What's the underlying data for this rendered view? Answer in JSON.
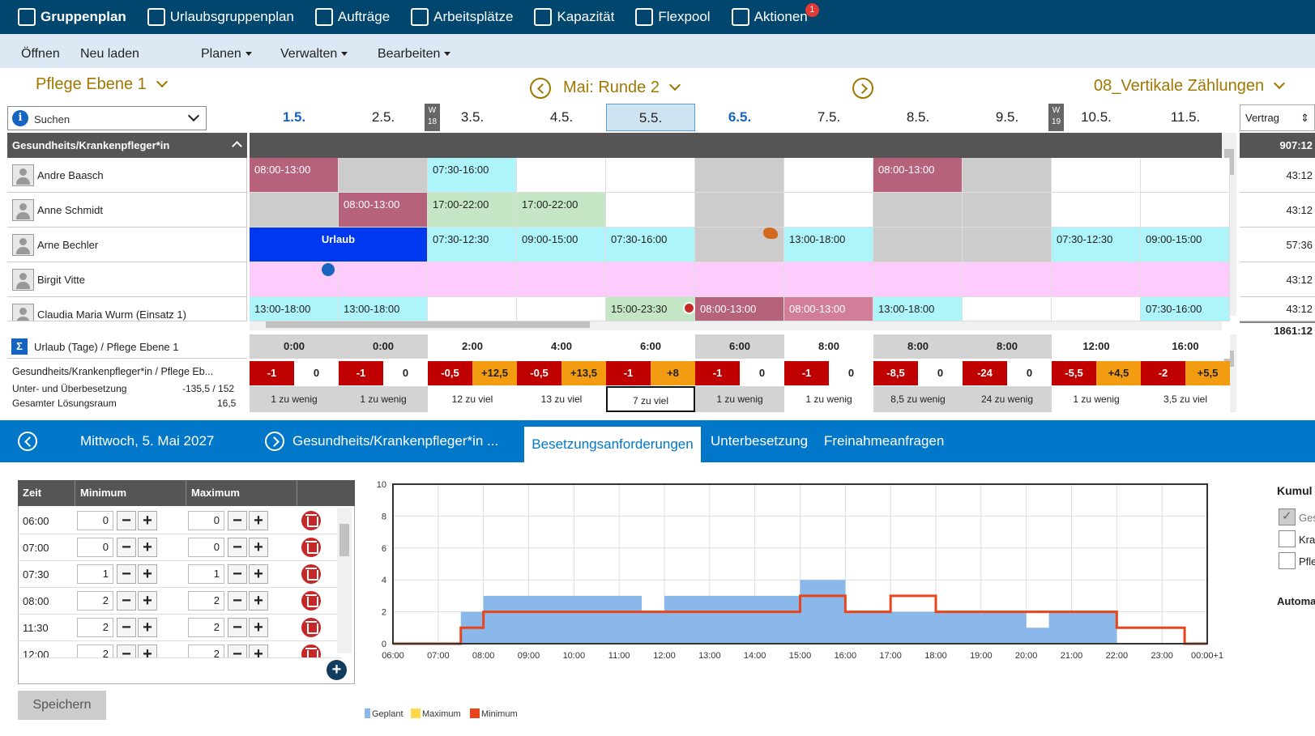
{
  "nav": [
    {
      "label": "Gruppenplan",
      "icon": "calendar-people-icon",
      "active": true
    },
    {
      "label": "Urlaubsgruppenplan",
      "icon": "calendar-check-icon"
    },
    {
      "label": "Aufträge",
      "icon": "rocket-icon"
    },
    {
      "label": "Arbeitsplätze",
      "icon": "clipboard-icon"
    },
    {
      "label": "Kapazität",
      "icon": "calendar-grid-icon"
    },
    {
      "label": "Flexpool",
      "icon": "person-gear-icon"
    },
    {
      "label": "Aktionen",
      "icon": "gauge-icon",
      "badge": "1"
    }
  ],
  "menu": {
    "open": "Öffnen",
    "reload": "Neu laden",
    "plan": "Planen",
    "manage": "Verwalten",
    "edit": "Bearbeiten"
  },
  "header": {
    "unit": "Pflege Ebene 1",
    "round": "Mai: Runde 2",
    "counting": "08_Vertikale Zählungen",
    "search_placeholder": "Suchen",
    "contract_label": "Vertrag"
  },
  "dates": [
    "1.5.",
    "2.5.",
    "3.5.",
    "4.5.",
    "5.5.",
    "6.5.",
    "7.5.",
    "8.5.",
    "9.5.",
    "10.5.",
    "11.5."
  ],
  "weeks": [
    {
      "w": "W",
      "n": "18"
    },
    {
      "w": "W",
      "n": "19"
    }
  ],
  "group": {
    "name": "Gesundheits/Krankenpfleger*in",
    "total": "907:12"
  },
  "employees": [
    {
      "name": "Andre Baasch",
      "hours": "43:12",
      "shifts": [
        "08:00-13:00",
        "",
        "07:30-16:00",
        "",
        "",
        "",
        "",
        "08:00-13:00",
        "",
        "",
        ""
      ]
    },
    {
      "name": "Anne Schmidt",
      "hours": "43:12",
      "shifts": [
        "",
        "08:00-13:00",
        "17:00-22:00",
        "17:00-22:00",
        "",
        "",
        "",
        "",
        "",
        "",
        ""
      ]
    },
    {
      "name": "Arne Bechler",
      "hours": "57:36",
      "shifts": [
        "Urlaub",
        "",
        "07:30-12:30",
        "09:00-15:00",
        "07:30-16:00",
        "",
        "13:00-18:00",
        "",
        "",
        "07:30-12:30",
        "09:00-15:00"
      ]
    },
    {
      "name": "Birgit Vitte",
      "hours": "43:12",
      "shifts": [
        "",
        "",
        "",
        "",
        "",
        "",
        "",
        "",
        "",
        "",
        ""
      ]
    },
    {
      "name": "Claudia Maria Wurm (Einsatz 1)",
      "hours": "43:12",
      "shifts": [
        "13:00-18:00",
        "13:00-18:00",
        "",
        "",
        "15:00-23:30",
        "08:00-13:00",
        "08:00-13:00",
        "13:00-18:00",
        "",
        "",
        "07:30-16:00"
      ]
    }
  ],
  "grand_total": "1861:12",
  "summary": {
    "vacation_label": "Urlaub (Tage) / Pflege Ebene 1",
    "row_label": "Gesundheits/Krankenpfleger*in / Pflege Eb...",
    "under_over_label": "Unter- und Überbesetzung",
    "under_over_value": "-135,5 / 152",
    "solution_label": "Gesamter Lösungsraum",
    "solution_value": "16,5",
    "hours": [
      "0:00",
      "0:00",
      "2:00",
      "4:00",
      "6:00",
      "6:00",
      "8:00",
      "8:00",
      "8:00",
      "12:00",
      "16:00"
    ],
    "neg": [
      "-1",
      "-1",
      "-0,5",
      "-0,5",
      "-1",
      "-1",
      "-1",
      "-8,5",
      "-24",
      "-5,5",
      "-2"
    ],
    "pos": [
      "0",
      "0",
      "+12,5",
      "+13,5",
      "+8",
      "0",
      "0",
      "0",
      "0",
      "+4,5",
      "+5,5"
    ],
    "text": [
      "1 zu wenig",
      "1 zu wenig",
      "12 zu viel",
      "13 zu viel",
      "7 zu viel",
      "1 zu wenig",
      "1 zu wenig",
      "8,5 zu wenig",
      "24 zu wenig",
      "1 zu wenig",
      "3,5 zu viel"
    ]
  },
  "bottom": {
    "date": "Mittwoch, 5. Mai 2027",
    "group": "Gesundheits/Krankenpfleger*in ...",
    "tabs": [
      "Besetzungsanforderungen",
      "Unterbesetzung",
      "Freinahmeanfragen"
    ]
  },
  "req_table": {
    "headers": [
      "Zeit",
      "Minimum",
      "Maximum"
    ],
    "rows": [
      {
        "time": "06:00",
        "min": "0",
        "max": "0"
      },
      {
        "time": "07:00",
        "min": "0",
        "max": "0"
      },
      {
        "time": "07:30",
        "min": "1",
        "max": "1"
      },
      {
        "time": "08:00",
        "min": "2",
        "max": "2"
      },
      {
        "time": "11:30",
        "min": "2",
        "max": "2"
      },
      {
        "time": "12:00",
        "min": "2",
        "max": "2"
      }
    ],
    "save": "Speichern"
  },
  "side": {
    "title": "Kumul",
    "opts": [
      "Ges",
      "Kra",
      "Pfle"
    ],
    "auto": "Automa"
  },
  "colors": {
    "nav": "#00466e",
    "accent": "#0077c8",
    "planned": "#8ab8ea",
    "minimum": "#e8451c",
    "maximum": "#ffd94a"
  },
  "chart_data": {
    "type": "area",
    "x_ticks": [
      "06:00",
      "07:00",
      "08:00",
      "09:00",
      "10:00",
      "11:00",
      "12:00",
      "13:00",
      "14:00",
      "15:00",
      "16:00",
      "17:00",
      "18:00",
      "19:00",
      "20:00",
      "21:00",
      "22:00",
      "23:00",
      "00:00+1"
    ],
    "y_ticks": [
      "0",
      "2",
      "4",
      "6",
      "8",
      "10"
    ],
    "ylim": [
      0,
      10
    ],
    "series": [
      {
        "name": "Geplant",
        "steps": [
          [
            6,
            0
          ],
          [
            7.5,
            2
          ],
          [
            8,
            3
          ],
          [
            11.5,
            2
          ],
          [
            12,
            3
          ],
          [
            15,
            4
          ],
          [
            16,
            2
          ],
          [
            20,
            1
          ],
          [
            20.5,
            2
          ],
          [
            22,
            0
          ]
        ]
      },
      {
        "name": "Minimum",
        "steps": [
          [
            6,
            0
          ],
          [
            7.5,
            1
          ],
          [
            8,
            2
          ],
          [
            15,
            3
          ],
          [
            16,
            2
          ],
          [
            17,
            3
          ],
          [
            18,
            2
          ],
          [
            22,
            1
          ],
          [
            23.5,
            0
          ]
        ]
      }
    ],
    "legend": [
      "Geplant",
      "Maximum",
      "Minimum"
    ]
  }
}
